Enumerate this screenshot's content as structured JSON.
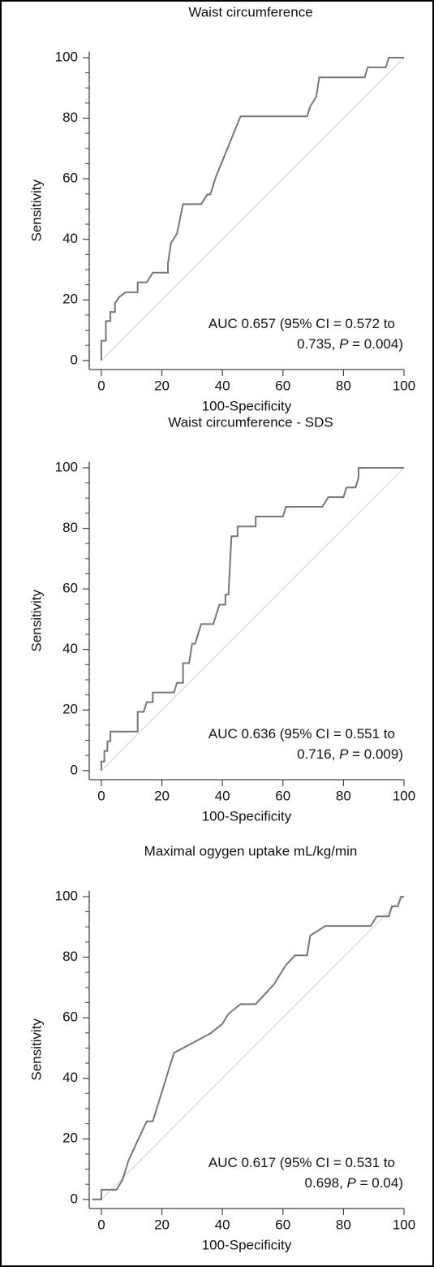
{
  "chart_data": [
    {
      "type": "line",
      "title": "Waist circumference",
      "xlabel": "100-Specificity",
      "ylabel": "Sensitivity",
      "x": [
        0,
        0,
        1.5,
        1.5,
        3,
        3,
        4.5,
        4.5,
        6,
        8,
        12,
        12,
        15,
        17,
        22,
        22,
        23,
        25,
        27,
        33,
        35,
        36,
        37,
        38,
        46,
        68,
        69,
        71,
        72,
        87,
        88,
        94,
        95,
        100
      ],
      "series": [
        {
          "color": "#777777",
          "values": [
            0,
            6.5,
            6.5,
            13,
            13,
            16,
            16,
            19,
            21,
            22.5,
            22.5,
            25.8,
            25.8,
            29,
            29,
            32,
            38.7,
            41.9,
            51.6,
            51.6,
            54.8,
            54.8,
            58,
            61,
            80.6,
            80.6,
            83.9,
            87,
            93.5,
            93.5,
            96.8,
            96.8,
            100,
            100
          ]
        }
      ],
      "xlim": [
        -4,
        100
      ],
      "ylim": [
        -3,
        102
      ],
      "xticks": [
        0,
        20,
        40,
        60,
        80,
        100
      ],
      "yticks": [
        0,
        20,
        40,
        60,
        80,
        100
      ],
      "yminorticks": [
        5,
        10,
        15,
        25,
        30,
        35,
        45,
        50,
        55,
        65,
        70,
        75,
        85,
        90,
        95
      ],
      "diagonal": {
        "color": "#d0d0d0"
      },
      "annotation": [
        [
          {
            "text": "AUC 0.657 (95% CI = 0.572 to",
            "style": "normal"
          }
        ],
        [
          {
            "text": "0.735, ",
            "style": "normal"
          },
          {
            "text": "P",
            "style": "italic"
          },
          {
            "text": " = 0.004)",
            "style": "normal"
          }
        ]
      ]
    },
    {
      "type": "line",
      "title": "Waist circumference - SDS",
      "xlabel": "100-Specificity",
      "ylabel": "Sensitivity",
      "x": [
        0,
        0,
        1,
        1,
        2,
        2,
        3,
        3,
        12,
        12,
        14,
        15,
        17,
        17,
        24,
        25,
        27,
        27,
        29,
        30,
        31,
        32,
        33,
        37,
        38,
        39,
        41,
        41,
        42,
        43,
        45,
        45,
        51,
        51,
        60,
        61,
        73,
        75,
        80,
        81,
        84,
        85,
        85,
        100
      ],
      "series": [
        {
          "color": "#777777",
          "values": [
            0,
            3,
            3,
            6.5,
            6.5,
            9.7,
            9.7,
            12.9,
            12.9,
            19.4,
            19.4,
            22.6,
            22.6,
            25.8,
            25.8,
            29,
            29,
            35.5,
            35.5,
            41.9,
            41.9,
            45.2,
            48.4,
            48.4,
            51.6,
            54.8,
            54.8,
            58.1,
            58.1,
            77.4,
            77.4,
            80.6,
            80.6,
            83.9,
            83.9,
            87.1,
            87.1,
            90.3,
            90.3,
            93.5,
            93.5,
            96.8,
            100,
            100
          ]
        }
      ],
      "xlim": [
        -4,
        100
      ],
      "ylim": [
        -3,
        102
      ],
      "xticks": [
        0,
        20,
        40,
        60,
        80,
        100
      ],
      "yticks": [
        0,
        20,
        40,
        60,
        80,
        100
      ],
      "yminorticks": [
        5,
        10,
        15,
        25,
        30,
        35,
        45,
        50,
        55,
        65,
        70,
        75,
        85,
        90,
        95
      ],
      "diagonal": {
        "color": "#d0d0d0"
      },
      "annotation": [
        [
          {
            "text": "AUC 0.636 (95% CI = 0.551 to",
            "style": "normal"
          }
        ],
        [
          {
            "text": "0.716, ",
            "style": "normal"
          },
          {
            "text": "P",
            "style": "italic"
          },
          {
            "text": " = 0.009)",
            "style": "normal"
          }
        ]
      ]
    },
    {
      "type": "line",
      "title": "Maximal ogygen uptake mL/kg/min",
      "xlabel": "100-Specificity",
      "ylabel": "Sensitivity",
      "x": [
        -3,
        0,
        0,
        5,
        7,
        9,
        12,
        15,
        17,
        24,
        36,
        40,
        42,
        46,
        51,
        57,
        59,
        61,
        64,
        68,
        69,
        74,
        89,
        91,
        95,
        96,
        98,
        99,
        100
      ],
      "series": [
        {
          "color": "#777777",
          "values": [
            0,
            0,
            3.2,
            3.2,
            6.5,
            12.9,
            19.4,
            25.8,
            25.8,
            48.4,
            54.8,
            58,
            61.3,
            64.5,
            64.5,
            71,
            74.2,
            77.4,
            80.6,
            80.6,
            87.1,
            90.3,
            90.3,
            93.5,
            93.5,
            96.8,
            96.8,
            100,
            100
          ]
        }
      ],
      "xlim": [
        -4,
        100
      ],
      "ylim": [
        -3,
        102
      ],
      "xticks": [
        0,
        20,
        40,
        60,
        80,
        100
      ],
      "yticks": [
        0,
        20,
        40,
        60,
        80,
        100
      ],
      "yminorticks": [
        5,
        10,
        15,
        25,
        30,
        35,
        45,
        50,
        55,
        65,
        70,
        75,
        85,
        90,
        95
      ],
      "diagonal": {
        "color": "#d0d0d0"
      },
      "annotation": [
        [
          {
            "text": "AUC 0.617 (95% CI = 0.531 to",
            "style": "normal"
          }
        ],
        [
          {
            "text": "0.698, ",
            "style": "normal"
          },
          {
            "text": "P",
            "style": "italic"
          },
          {
            "text": " = 0.04)",
            "style": "normal"
          }
        ]
      ]
    }
  ]
}
